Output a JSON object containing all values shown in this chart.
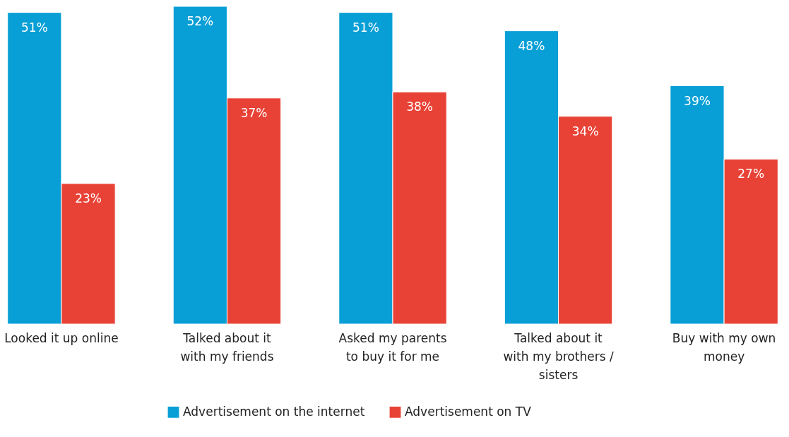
{
  "chart_data": {
    "type": "bar",
    "categories": [
      "Looked it up online",
      "Talked about it\nwith my friends",
      "Asked my parents\nto buy it for me",
      "Talked about it\nwith my brothers /\nsisters",
      "Buy with my own\nmoney"
    ],
    "series": [
      {
        "name": "Advertisement on the internet",
        "color": "#089fd6",
        "values": [
          51,
          52,
          51,
          48,
          39
        ],
        "value_labels": [
          "51%",
          "52%",
          "51%",
          "48%",
          "39%"
        ]
      },
      {
        "name": "Advertisement on TV",
        "color": "#e84236",
        "values": [
          23,
          37,
          38,
          34,
          27
        ],
        "value_labels": [
          "23%",
          "37%",
          "38%",
          "34%",
          "27%"
        ]
      }
    ],
    "legend": "bottom"
  }
}
